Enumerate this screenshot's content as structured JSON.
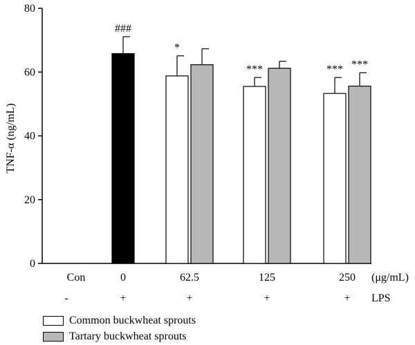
{
  "chart_data": {
    "type": "bar",
    "ylabel": "TNF-α (ng/mL)",
    "ylim": [
      0,
      80
    ],
    "yticks": [
      0,
      20,
      40,
      60,
      80
    ],
    "categories": [
      "Con",
      "0",
      "62.5",
      "125",
      "250"
    ],
    "x_unit": "(μg/mL)",
    "lps_row": {
      "values": [
        "-",
        "+",
        "+",
        "+",
        "+"
      ],
      "label": "LPS"
    },
    "bars": [
      {
        "category": "0",
        "series": "LPS",
        "value": 65.8,
        "error": 5.3,
        "annotation": "###",
        "color": "#000000"
      },
      {
        "category": "62.5",
        "series": "Common buckwheat sprouts",
        "value": 58.8,
        "error": 6.3,
        "annotation": "*",
        "color": "#ffffff"
      },
      {
        "category": "62.5",
        "series": "Tartary buckwheat sprouts",
        "value": 62.3,
        "error": 5.0,
        "annotation": "",
        "color": "#b8b8b8"
      },
      {
        "category": "125",
        "series": "Common buckwheat sprouts",
        "value": 55.5,
        "error": 2.8,
        "annotation": "***",
        "color": "#ffffff"
      },
      {
        "category": "125",
        "series": "Tartary buckwheat sprouts",
        "value": 61.2,
        "error": 2.2,
        "annotation": "",
        "color": "#b8b8b8"
      },
      {
        "category": "250",
        "series": "Common buckwheat sprouts",
        "value": 53.3,
        "error": 5.0,
        "annotation": "***",
        "color": "#ffffff"
      },
      {
        "category": "250",
        "series": "Tartary buckwheat sprouts",
        "value": 55.6,
        "error": 4.2,
        "annotation": "***",
        "color": "#b8b8b8"
      }
    ],
    "legend": [
      {
        "label": "Common buckwheat sprouts",
        "color": "#ffffff"
      },
      {
        "label": "Tartary buckwheat sprouts",
        "color": "#b8b8b8"
      }
    ]
  }
}
